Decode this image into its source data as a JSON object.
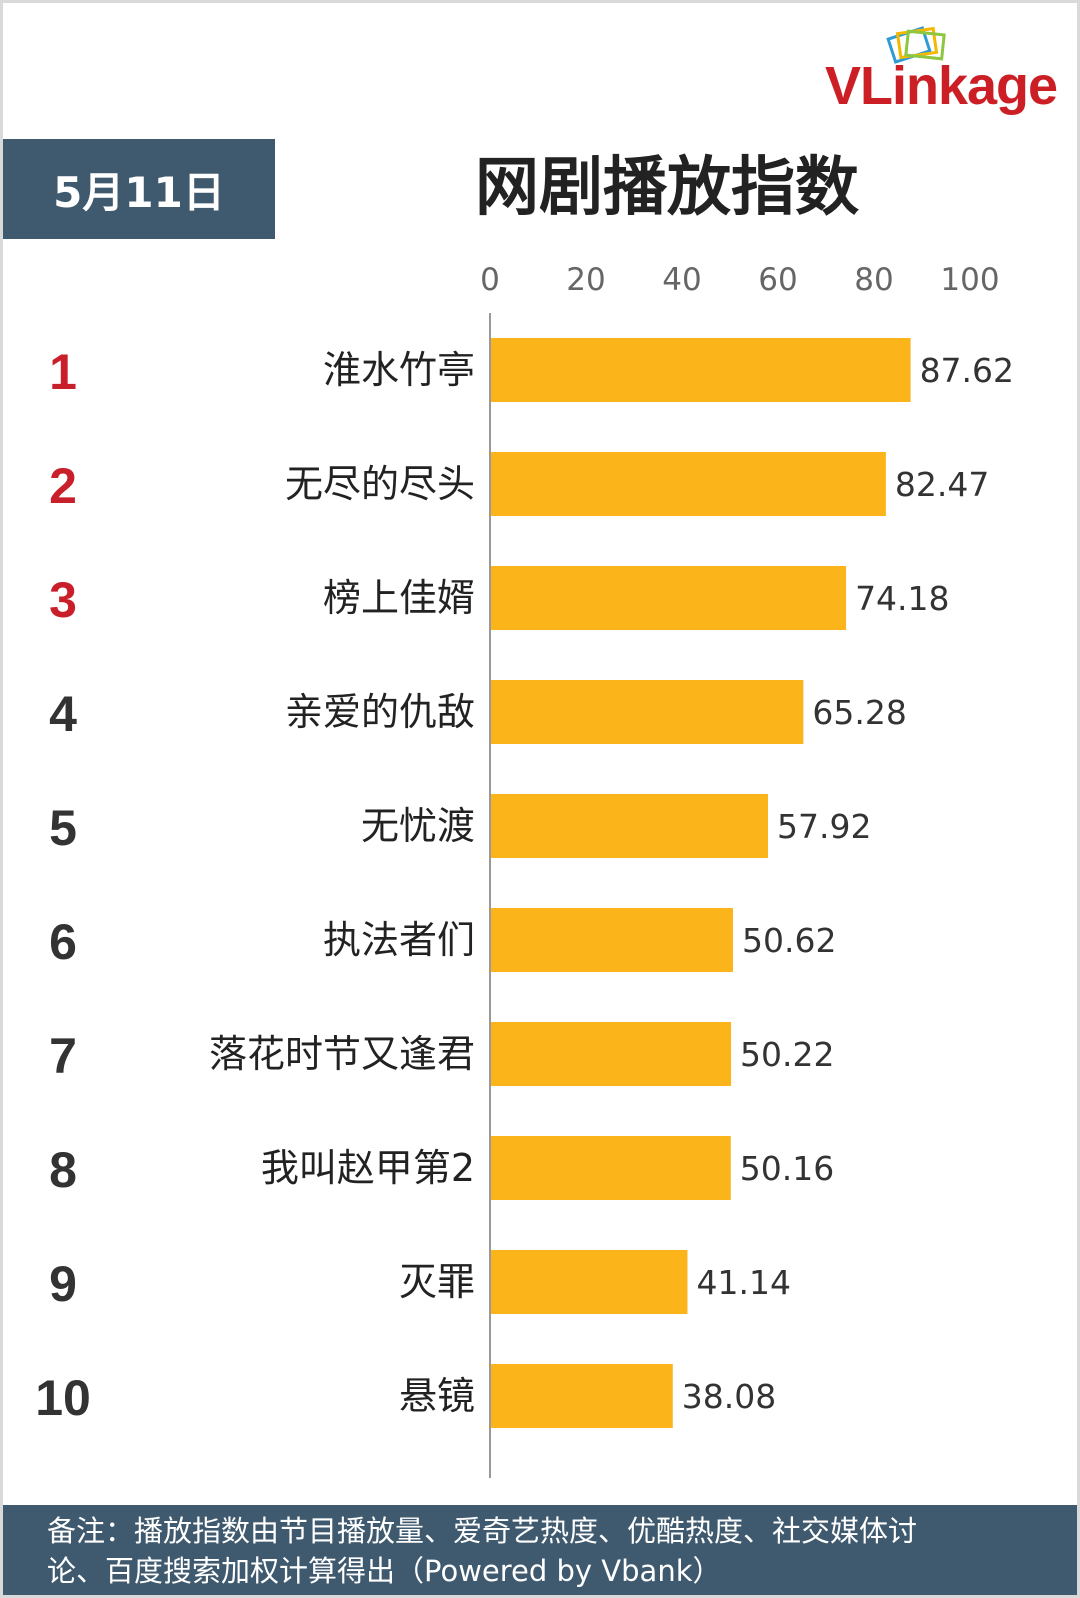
{
  "logo": {
    "text": "VLinkage"
  },
  "header": {
    "date": "5月11日"
  },
  "chart_data": {
    "type": "bar",
    "orientation": "horizontal",
    "title": "网剧播放指数",
    "xlim": [
      0,
      100
    ],
    "ticks": [
      0,
      20,
      40,
      60,
      80,
      100
    ],
    "ranks": [
      "1",
      "2",
      "3",
      "4",
      "5",
      "6",
      "7",
      "8",
      "9",
      "10"
    ],
    "categories": [
      "淮水竹亭",
      "无尽的尽头",
      "榜上佳婿",
      "亲爱的仇敌",
      "无忧渡",
      "执法者们",
      "落花时节又逢君",
      "我叫赵甲第2",
      "灭罪",
      "悬镜"
    ],
    "values": [
      87.62,
      82.47,
      74.18,
      65.28,
      57.92,
      50.62,
      50.22,
      50.16,
      41.14,
      38.08
    ],
    "value_labels": [
      "87.62",
      "82.47",
      "74.18",
      "65.28",
      "57.92",
      "50.62",
      "50.22",
      "50.16",
      "41.14",
      "38.08"
    ],
    "bar_color": "#fbb41a",
    "top_rank_color": "#c81f2a",
    "rank_color": "#333333",
    "grid": false
  },
  "footnote": {
    "line1": "备注：播放指数由节目播放量、爱奇艺热度、优酷热度、社交媒体讨",
    "line2": "论、百度搜索加权计算得出（Powered by Vbank）"
  }
}
